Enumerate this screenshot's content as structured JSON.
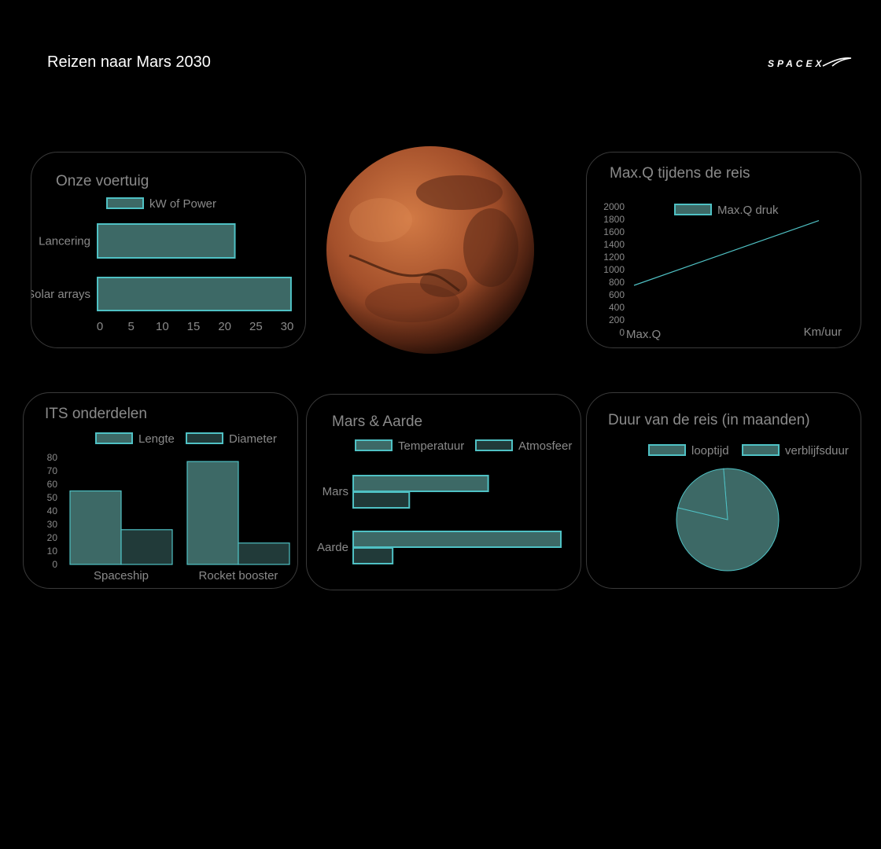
{
  "header": {
    "title": "Reizen naar Mars 2030",
    "logo": "SPACEX"
  },
  "colors": {
    "fill_primary": "#3d6966",
    "fill_secondary": "#213a39",
    "stroke": "#4fc1c4",
    "text": "#8a8a8a",
    "background": "#000000"
  },
  "image": {
    "name": "mars-planet-image"
  },
  "chart_data": [
    {
      "id": "vehicle",
      "type": "bar",
      "orientation": "horizontal",
      "title": "Onze voertuig",
      "categories": [
        "Lancering",
        "Solar arrays"
      ],
      "series": [
        {
          "name": "kW of Power",
          "values": [
            22,
            31
          ]
        }
      ],
      "xlim": [
        0,
        30
      ],
      "xticks": [
        "0",
        "5",
        "10",
        "15",
        "20",
        "25",
        "30"
      ]
    },
    {
      "id": "maxq",
      "type": "line",
      "title": "Max.Q tijdens de reis",
      "xlabel": "Max.Q",
      "x_unit_label": "Km/uur",
      "series": [
        {
          "name": "Max.Q druk",
          "x": [
            0,
            1
          ],
          "y": [
            750,
            1780
          ]
        }
      ],
      "ylim": [
        0,
        2000
      ],
      "yticks": [
        "0",
        "200",
        "400",
        "600",
        "800",
        "1000",
        "1200",
        "1400",
        "1600",
        "1800",
        "2000"
      ]
    },
    {
      "id": "its",
      "type": "bar",
      "title": "ITS onderdelen",
      "categories": [
        "Spaceship",
        "Rocket booster"
      ],
      "series": [
        {
          "name": "Lengte",
          "values": [
            55,
            77
          ]
        },
        {
          "name": "Diameter",
          "values": [
            26,
            16
          ]
        }
      ],
      "ylim": [
        0,
        80
      ],
      "yticks": [
        "0",
        "10",
        "20",
        "30",
        "40",
        "50",
        "60",
        "70",
        "80"
      ]
    },
    {
      "id": "mars_earth",
      "type": "bar",
      "orientation": "horizontal",
      "title": "Mars & Aarde",
      "categories": [
        "Mars",
        "Aarde"
      ],
      "series": [
        {
          "name": "Temperatuur",
          "values": [
            65,
            100
          ]
        },
        {
          "name": "Atmosfeer",
          "values": [
            27,
            19
          ]
        }
      ]
    },
    {
      "id": "duration",
      "type": "pie",
      "title": "Duur van de reis (in maanden)",
      "slices": [
        {
          "name": "looptijd",
          "value": 0.8
        },
        {
          "name": "verblijfsduur",
          "value": 0.2
        }
      ]
    }
  ]
}
